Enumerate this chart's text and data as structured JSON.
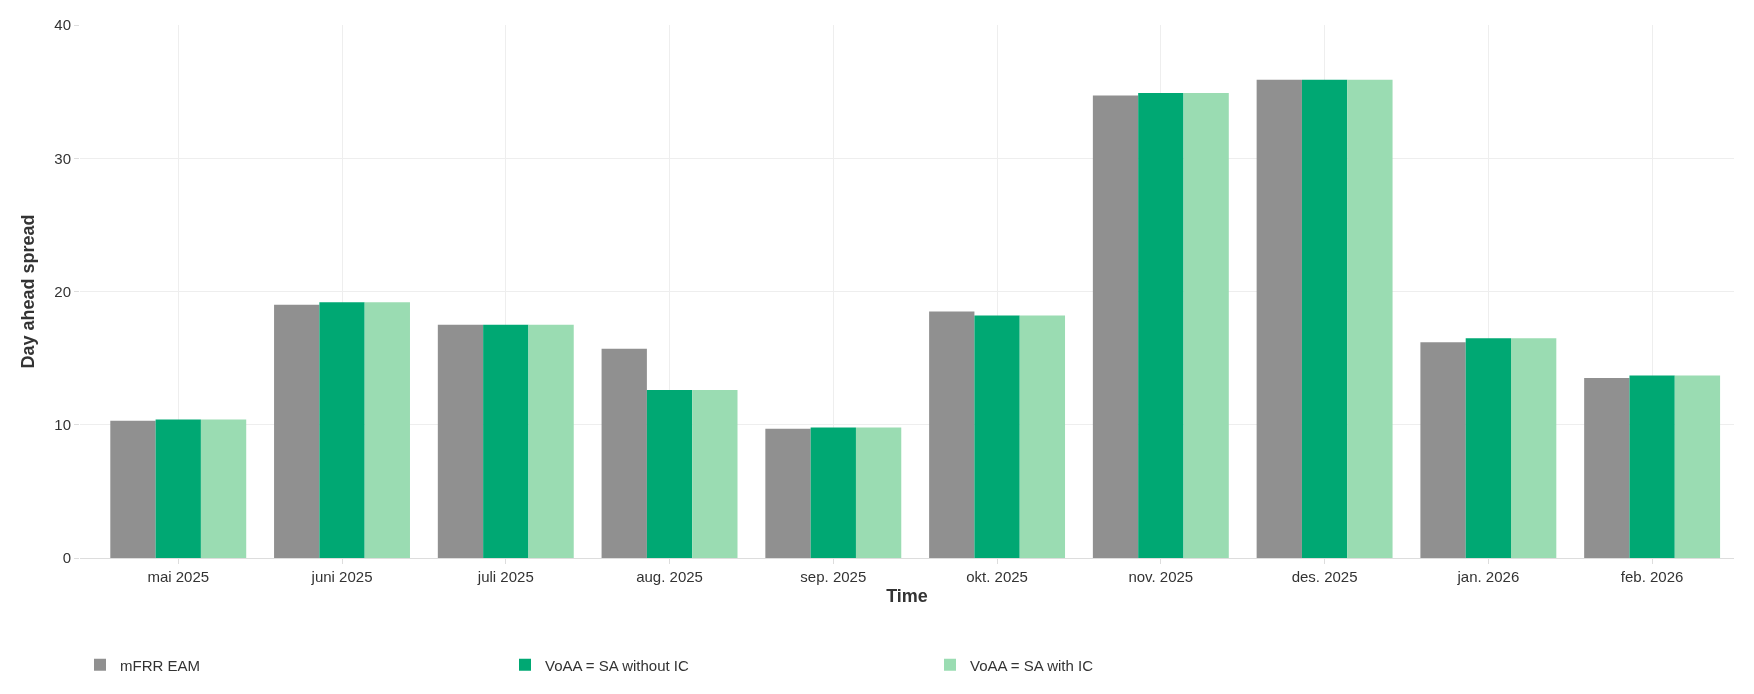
{
  "chart_data": {
    "type": "bar",
    "xlabel": "Time",
    "ylabel": "Day ahead spread",
    "categories": [
      "mai 2025",
      "juni 2025",
      "juli 2025",
      "aug. 2025",
      "sep. 2025",
      "okt. 2025",
      "nov. 2025",
      "des. 2025",
      "jan. 2026",
      "feb. 2026"
    ],
    "series": [
      {
        "name": "mFRR EAM",
        "color": "#909090",
        "values": [
          10.3,
          19.0,
          17.5,
          15.7,
          9.7,
          18.5,
          34.7,
          35.9,
          16.2,
          13.5
        ]
      },
      {
        "name": "VoAA = SA without IC",
        "color": "#00a873",
        "values": [
          10.4,
          19.2,
          17.5,
          12.6,
          9.8,
          18.2,
          34.9,
          35.9,
          16.5,
          13.7
        ]
      },
      {
        "name": "VoAA = SA with IC",
        "color": "#9adcb2",
        "values": [
          10.4,
          19.2,
          17.5,
          12.6,
          9.8,
          18.2,
          34.9,
          35.9,
          16.5,
          13.7
        ]
      }
    ],
    "ylim": [
      0,
      40
    ],
    "yticks": [
      0,
      10,
      20,
      30,
      40
    ],
    "grid": true,
    "legend": "bottom left"
  }
}
